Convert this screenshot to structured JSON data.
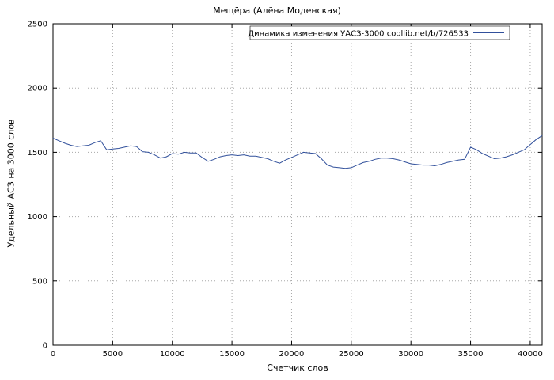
{
  "chart_data": {
    "type": "line",
    "title": "Мещёра (Алёна Моденская)",
    "xlabel": "Счетчик слов",
    "ylabel": "Удельный АСЗ на 3000 слов",
    "xlim": [
      0,
      41000
    ],
    "ylim": [
      0,
      2500
    ],
    "xticks": [
      0,
      5000,
      10000,
      15000,
      20000,
      25000,
      30000,
      35000,
      40000
    ],
    "yticks": [
      0,
      500,
      1000,
      1500,
      2000,
      2500
    ],
    "grid": true,
    "legend_position": "top-inside-boxed",
    "axis_color": "#000000",
    "grid_color": "#a8a8a8",
    "series": [
      {
        "name": "Динамика изменения УАСЗ-3000 coollib.net/b/726533",
        "color": "#31509b",
        "x": [
          0,
          500,
          1000,
          1500,
          2000,
          2500,
          3000,
          3500,
          4000,
          4500,
          5000,
          5500,
          6000,
          6500,
          7000,
          7500,
          8000,
          8500,
          9000,
          9500,
          10000,
          10500,
          11000,
          11500,
          12000,
          12500,
          13000,
          13500,
          14000,
          14500,
          15000,
          15500,
          16000,
          16500,
          17000,
          17500,
          18000,
          18500,
          19000,
          19500,
          20000,
          20500,
          21000,
          21500,
          22000,
          22500,
          23000,
          23500,
          24000,
          24500,
          25000,
          25500,
          26000,
          26500,
          27000,
          27500,
          28000,
          28500,
          29000,
          29500,
          30000,
          30500,
          31000,
          31500,
          32000,
          32500,
          33000,
          33500,
          34000,
          34500,
          35000,
          35500,
          36000,
          36500,
          37000,
          37500,
          38000,
          38500,
          39000,
          39500,
          40000,
          40500,
          41000
        ],
        "y": [
          1610,
          1590,
          1570,
          1555,
          1545,
          1550,
          1555,
          1575,
          1590,
          1520,
          1525,
          1530,
          1540,
          1550,
          1545,
          1505,
          1500,
          1480,
          1455,
          1465,
          1490,
          1485,
          1500,
          1495,
          1495,
          1460,
          1430,
          1445,
          1465,
          1475,
          1480,
          1475,
          1480,
          1470,
          1470,
          1460,
          1450,
          1430,
          1415,
          1440,
          1460,
          1480,
          1500,
          1495,
          1490,
          1450,
          1400,
          1385,
          1380,
          1375,
          1380,
          1400,
          1420,
          1430,
          1445,
          1455,
          1455,
          1450,
          1440,
          1425,
          1410,
          1405,
          1400,
          1400,
          1395,
          1405,
          1420,
          1430,
          1440,
          1445,
          1540,
          1520,
          1490,
          1470,
          1450,
          1455,
          1465,
          1480,
          1500,
          1520,
          1560,
          1600,
          1630
        ]
      }
    ]
  }
}
